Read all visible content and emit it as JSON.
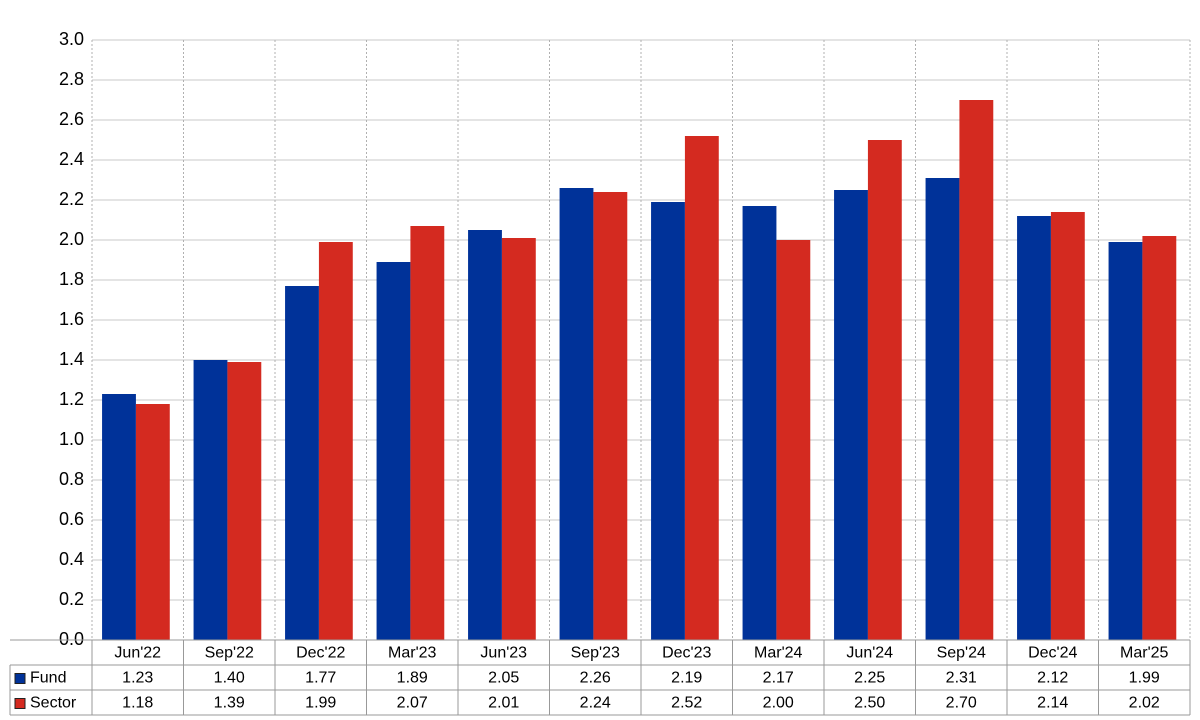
{
  "chart_data": {
    "type": "bar",
    "categories": [
      "Jun'22",
      "Sep'22",
      "Dec'22",
      "Mar'23",
      "Jun'23",
      "Sep'23",
      "Dec'23",
      "Mar'24",
      "Jun'24",
      "Sep'24",
      "Dec'24",
      "Mar'25"
    ],
    "series": [
      {
        "name": "Fund",
        "color": "#003299",
        "values": [
          1.23,
          1.4,
          1.77,
          1.89,
          2.05,
          2.26,
          2.19,
          2.17,
          2.25,
          2.31,
          2.12,
          1.99
        ],
        "value_labels": [
          "1.23",
          "1.40",
          "1.77",
          "1.89",
          "2.05",
          "2.26",
          "2.19",
          "2.17",
          "2.25",
          "2.31",
          "2.12",
          "1.99"
        ]
      },
      {
        "name": "Sector",
        "color": "#d42a20",
        "values": [
          1.18,
          1.39,
          1.99,
          2.07,
          2.01,
          2.24,
          2.52,
          2.0,
          2.5,
          2.7,
          2.14,
          2.02
        ],
        "value_labels": [
          "1.18",
          "1.39",
          "1.99",
          "2.07",
          "2.01",
          "2.24",
          "2.52",
          "2.00",
          "2.50",
          "2.70",
          "2.14",
          "2.02"
        ]
      }
    ],
    "ylim": [
      0,
      3
    ],
    "yticks": [
      {
        "value": 0,
        "label": "0.0"
      },
      0.2,
      0.4,
      0.6,
      0.8,
      {
        "value": 1,
        "label": "1.0"
      },
      1.2,
      1.4,
      1.6,
      1.8,
      {
        "value": 2,
        "label": "2.0"
      },
      2.2,
      2.4,
      2.6,
      2.8,
      {
        "value": 3,
        "label": "3.0"
      }
    ],
    "grid": true
  }
}
